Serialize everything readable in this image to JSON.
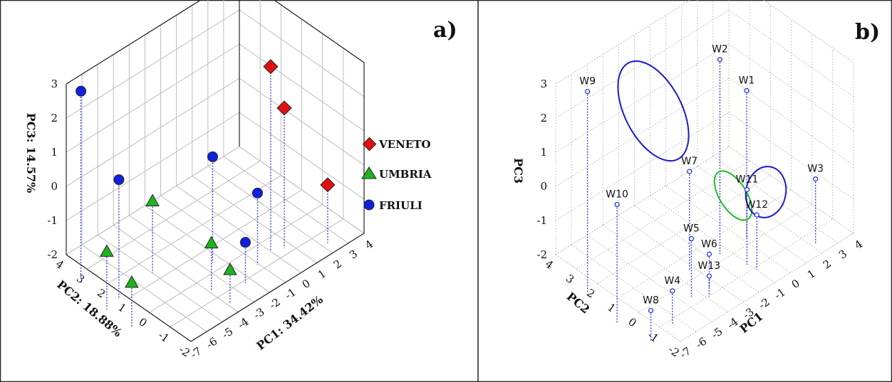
{
  "colors": {
    "veneto": "#e01010",
    "umbria": "#1db41d",
    "friuli": "#1020e0",
    "stem": "#2a3ad8",
    "ellipse_blue": "#1a1ad0",
    "ellipse_green": "#22bb22",
    "open_marker": "#2a3ad8"
  },
  "chart_data": [
    {
      "type": "scatter",
      "panel_label": "a)",
      "xlabel": "PC1: 34.42%",
      "ylabel": "PC2: 18.88%",
      "zlabel": "PC3: 14.57%",
      "xlim": [
        -7,
        4
      ],
      "ylim": [
        -2,
        4
      ],
      "zlim": [
        -2,
        3
      ],
      "x_ticks": [
        "-7",
        "-6",
        "-5",
        "-4",
        "-3",
        "-2",
        "-1",
        "0",
        "1",
        "2",
        "3",
        "4"
      ],
      "y_ticks": [
        "4",
        "3",
        "2",
        "1",
        "0",
        "-1",
        "-2"
      ],
      "z_ticks": [
        "3",
        "2",
        "1",
        "0",
        "-1",
        "-2"
      ],
      "legend": [
        {
          "name": "VENETO",
          "marker": "diamond"
        },
        {
          "name": "UMBRIA",
          "marker": "triangle"
        },
        {
          "name": "FRIULI",
          "marker": "circle"
        }
      ],
      "legend_position": "right",
      "series": [
        {
          "name": "VENETO",
          "points": [
            {
              "x": 1.5,
              "y": 0.6,
              "z": 2.5
            },
            {
              "x": 2.1,
              "y": 0.4,
              "z": 1.2
            },
            {
              "x": 3.8,
              "y": -0.4,
              "z": -1.2
            }
          ]
        },
        {
          "name": "UMBRIA",
          "points": [
            {
              "x": -6.8,
              "y": 1.0,
              "z": -1.6
            },
            {
              "x": -6.8,
              "y": 2.2,
              "z": -1.2
            },
            {
              "x": -2.4,
              "y": 0.5,
              "z": -1.5
            },
            {
              "x": -2.4,
              "y": -0.4,
              "z": -1.9
            },
            {
              "x": -3.5,
              "y": 2.5,
              "z": -0.8
            }
          ]
        },
        {
          "name": "FRIULI",
          "points": [
            {
              "x": -6.2,
              "y": 3.9,
              "z": 2.6
            },
            {
              "x": -5.9,
              "y": 2.3,
              "z": 0.6
            },
            {
              "x": -1.0,
              "y": 1.5,
              "z": 0.2
            },
            {
              "x": 0.4,
              "y": 0.4,
              "z": -0.8
            },
            {
              "x": -0.9,
              "y": 0.0,
              "z": -1.7
            }
          ]
        }
      ]
    },
    {
      "type": "scatter",
      "panel_label": "b)",
      "xlabel": "PC1",
      "ylabel": "PC2",
      "zlabel": "PC3",
      "xlim": [
        -7,
        4
      ],
      "ylim": [
        -2,
        4
      ],
      "zlim": [
        -2,
        3
      ],
      "x_ticks": [
        "-7",
        "-6",
        "-5",
        "-4",
        "-3",
        "-2",
        "-1",
        "0",
        "1",
        "2",
        "3",
        "4"
      ],
      "y_ticks": [
        "4",
        "3",
        "2",
        "1",
        "0",
        "-1",
        "-2"
      ],
      "z_ticks": [
        "3",
        "2",
        "1",
        "0",
        "-1",
        "-2"
      ],
      "points": [
        {
          "label": "W1",
          "x": 1.7,
          "y": 1.4,
          "z": 1.4
        },
        {
          "label": "W2",
          "x": 0.0,
          "y": 1.4,
          "z": 2.8
        },
        {
          "label": "W3",
          "x": 3.7,
          "y": -0.4,
          "z": -1.0
        },
        {
          "label": "W4",
          "x": -5.0,
          "y": -0.1,
          "z": -1.9
        },
        {
          "label": "W5",
          "x": -3.0,
          "y": 0.5,
          "z": -1.2
        },
        {
          "label": "W6",
          "x": -2.0,
          "y": 0.4,
          "z": -1.9
        },
        {
          "label": "W7",
          "x": -1.8,
          "y": 1.5,
          "z": 0.0
        },
        {
          "label": "W8",
          "x": -6.5,
          "y": -0.2,
          "z": -2.0
        },
        {
          "label": "W9",
          "x": -6.3,
          "y": 3.0,
          "z": 3.0
        },
        {
          "label": "W10",
          "x": -6.8,
          "y": 1.2,
          "z": 0.6
        },
        {
          "label": "W11",
          "x": 0.4,
          "y": 0.4,
          "z": -0.7
        },
        {
          "label": "W12",
          "x": 0.5,
          "y": 0.0,
          "z": -1.3
        },
        {
          "label": "W13",
          "x": -2.4,
          "y": 0.1,
          "z": -2.3
        }
      ]
    }
  ]
}
